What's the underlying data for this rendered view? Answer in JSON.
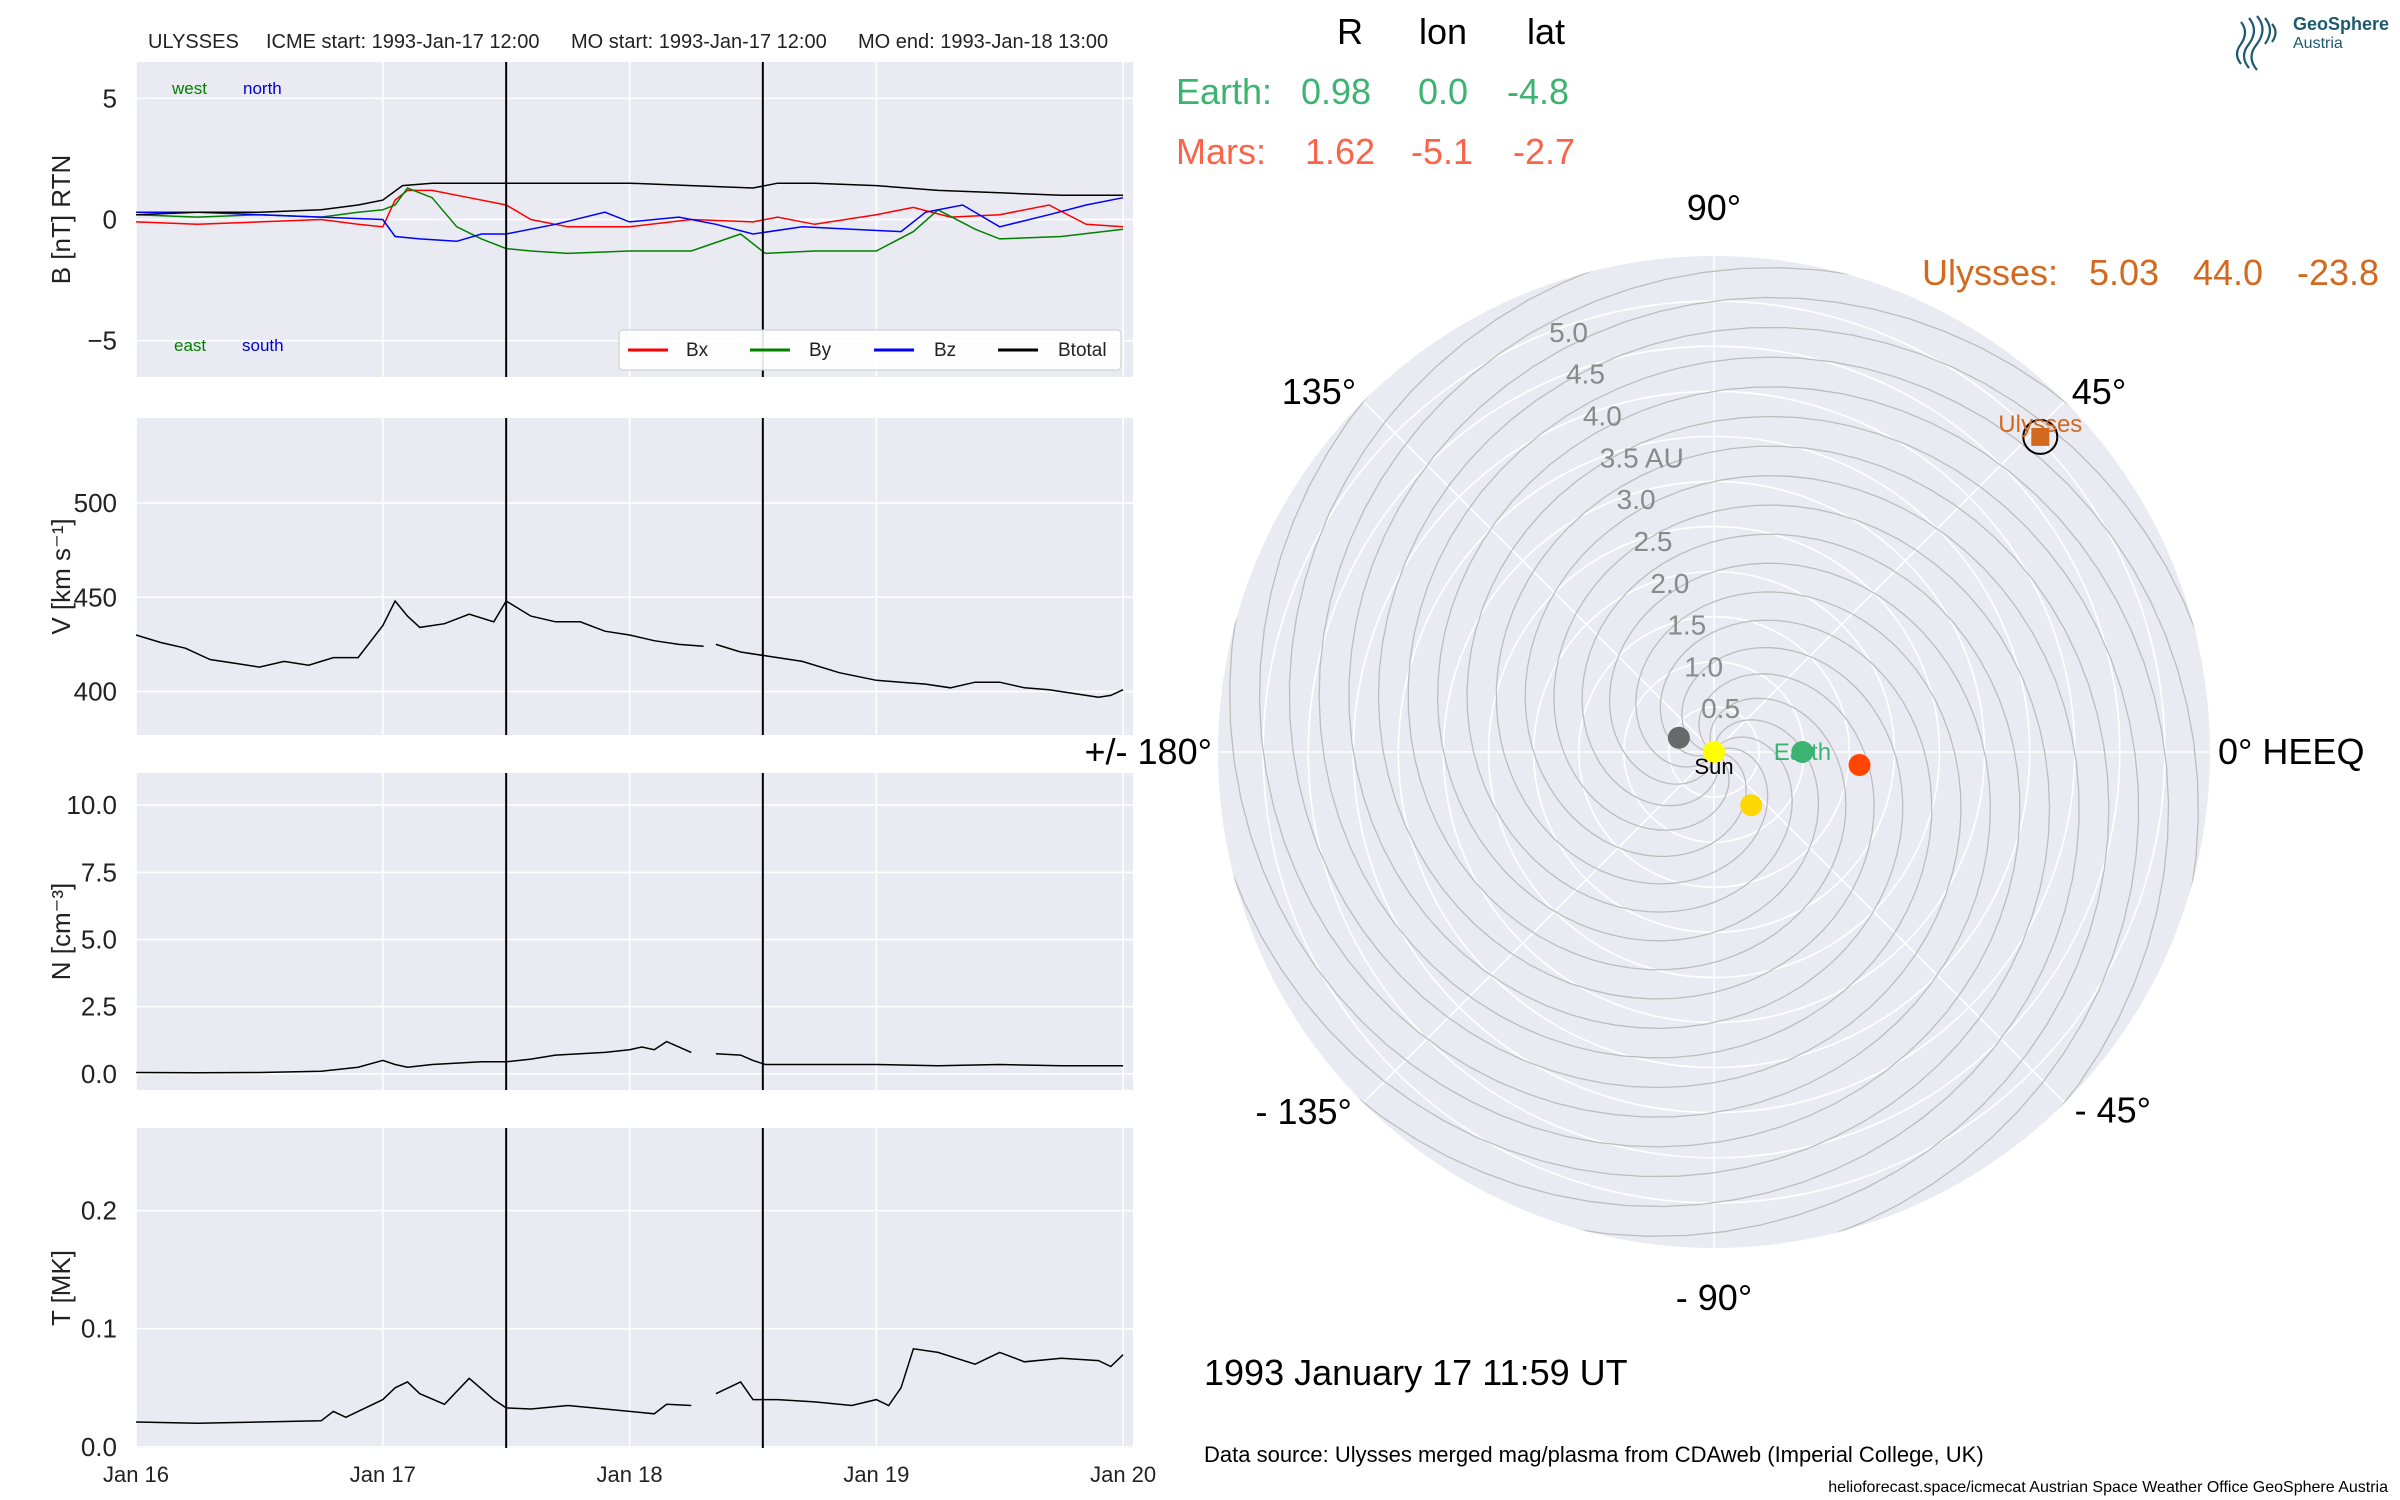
{
  "header": {
    "spacecraft": "ULYSSES",
    "icme_start": "ICME start: 1993-Jan-17 12:00",
    "mo_start": "MO start: 1993-Jan-17 12:00",
    "mo_end": "MO end: 1993-Jan-18 13:00"
  },
  "time_axis": {
    "range_days": [
      0,
      4.04
    ],
    "ticks": [
      {
        "day": 0,
        "label": "Jan 16"
      },
      {
        "day": 1,
        "label": "Jan 17"
      },
      {
        "day": 2,
        "label": "Jan 18"
      },
      {
        "day": 3,
        "label": "Jan 19"
      },
      {
        "day": 4,
        "label": "Jan 20"
      }
    ],
    "event_lines_days": [
      1.5,
      2.54
    ]
  },
  "panels": [
    {
      "id": "b",
      "ylabel": "B [nT] RTN",
      "ylim": [
        -6.5,
        6.5
      ],
      "yticks": [
        {
          "v": 5,
          "label": "5"
        },
        {
          "v": 0,
          "label": "0"
        },
        {
          "v": -5,
          "label": "−5"
        }
      ],
      "annotations": {
        "west": "west",
        "north": "north",
        "east": "east",
        "south": "south"
      },
      "legend": [
        {
          "name": "Bx",
          "color": "#ff0000"
        },
        {
          "name": "By",
          "color": "#008000"
        },
        {
          "name": "Bz",
          "color": "#0000ff"
        },
        {
          "name": "Btotal",
          "color": "#000000"
        }
      ]
    },
    {
      "id": "v",
      "ylabel": "V [km s⁻¹]",
      "ylim": [
        377,
        545
      ],
      "yticks": [
        {
          "v": 500,
          "label": "500"
        },
        {
          "v": 450,
          "label": "450"
        },
        {
          "v": 400,
          "label": "400"
        }
      ]
    },
    {
      "id": "n",
      "ylabel": "N [cm⁻³]",
      "ylim": [
        -0.6,
        11.2
      ],
      "yticks": [
        {
          "v": 10,
          "label": "10.0"
        },
        {
          "v": 7.5,
          "label": "7.5"
        },
        {
          "v": 5,
          "label": "5.0"
        },
        {
          "v": 2.5,
          "label": "2.5"
        },
        {
          "v": 0,
          "label": "0.0"
        }
      ]
    },
    {
      "id": "t",
      "ylabel": "T [MK]",
      "ylim": [
        -0.001,
        0.27
      ],
      "yticks": [
        {
          "v": 0.2,
          "label": "0.2"
        },
        {
          "v": 0.1,
          "label": "0.1"
        },
        {
          "v": 0,
          "label": "0.0"
        }
      ]
    }
  ],
  "chart_data": [
    {
      "type": "line",
      "title": "ULYSSES",
      "ylabel": "B [nT] RTN",
      "x_units": "days since 1993-Jan-16 00:00",
      "ylim": [
        -6.5,
        6.5
      ],
      "series": [
        {
          "name": "Bx",
          "color": "#ff0000",
          "x": [
            0,
            0.25,
            0.5,
            0.75,
            0.9,
            1.0,
            1.05,
            1.1,
            1.2,
            1.35,
            1.5,
            1.6,
            1.75,
            2.0,
            2.25,
            2.5,
            2.6,
            2.75,
            3.0,
            3.15,
            3.3,
            3.5,
            3.7,
            3.85,
            4.0
          ],
          "y": [
            -0.1,
            -0.2,
            -0.1,
            0.0,
            -0.2,
            -0.3,
            0.8,
            1.2,
            1.2,
            0.9,
            0.6,
            0.0,
            -0.3,
            -0.3,
            0.0,
            -0.1,
            0.1,
            -0.2,
            0.2,
            0.5,
            0.1,
            0.2,
            0.6,
            -0.2,
            -0.3
          ]
        },
        {
          "name": "By",
          "color": "#008000",
          "x": [
            0,
            0.25,
            0.5,
            0.75,
            0.9,
            1.0,
            1.05,
            1.1,
            1.2,
            1.3,
            1.4,
            1.5,
            1.6,
            1.75,
            2.0,
            2.25,
            2.45,
            2.55,
            2.75,
            3.0,
            3.15,
            3.25,
            3.4,
            3.5,
            3.75,
            4.0
          ],
          "y": [
            0.2,
            0.1,
            0.2,
            0.1,
            0.3,
            0.4,
            0.6,
            1.3,
            0.9,
            -0.3,
            -0.8,
            -1.2,
            -1.3,
            -1.4,
            -1.3,
            -1.3,
            -0.6,
            -1.4,
            -1.3,
            -1.3,
            -0.5,
            0.4,
            -0.4,
            -0.8,
            -0.7,
            -0.4
          ]
        },
        {
          "name": "Bz",
          "color": "#0000ff",
          "x": [
            0,
            0.25,
            0.5,
            0.75,
            1.0,
            1.05,
            1.15,
            1.3,
            1.4,
            1.5,
            1.7,
            1.9,
            2.0,
            2.2,
            2.35,
            2.5,
            2.7,
            2.9,
            3.1,
            3.2,
            3.35,
            3.5,
            3.7,
            3.85,
            4.0
          ],
          "y": [
            0.3,
            0.3,
            0.2,
            0.1,
            0.0,
            -0.7,
            -0.8,
            -0.9,
            -0.6,
            -0.6,
            -0.2,
            0.3,
            -0.1,
            0.1,
            -0.2,
            -0.6,
            -0.3,
            -0.4,
            -0.5,
            0.3,
            0.6,
            -0.3,
            0.2,
            0.6,
            0.9
          ]
        },
        {
          "name": "Btotal",
          "color": "#000000",
          "x": [
            0,
            0.25,
            0.5,
            0.75,
            0.9,
            1.0,
            1.08,
            1.2,
            1.5,
            1.75,
            2.0,
            2.25,
            2.5,
            2.6,
            2.75,
            3.0,
            3.25,
            3.5,
            3.75,
            4.0
          ],
          "y": [
            0.2,
            0.3,
            0.3,
            0.4,
            0.6,
            0.8,
            1.4,
            1.5,
            1.5,
            1.5,
            1.5,
            1.4,
            1.3,
            1.5,
            1.5,
            1.4,
            1.2,
            1.1,
            1.0,
            1.0
          ]
        }
      ]
    },
    {
      "type": "line",
      "ylabel": "V [km s⁻¹]",
      "x_units": "days since 1993-Jan-16 00:00",
      "ylim": [
        377,
        545
      ],
      "series": [
        {
          "name": "V",
          "color": "#000000",
          "x": [
            0,
            0.1,
            0.2,
            0.3,
            0.4,
            0.5,
            0.6,
            0.7,
            0.75,
            0.8,
            0.9,
            1.0,
            1.05,
            1.1,
            1.15,
            1.25,
            1.35,
            1.45,
            1.5,
            1.6,
            1.7,
            1.8,
            1.9,
            2.0,
            2.1,
            2.2,
            2.3,
            null,
            2.35,
            2.45,
            2.55,
            2.7,
            2.85,
            3.0,
            3.1,
            3.2,
            3.3,
            3.4,
            3.5,
            3.6,
            3.7,
            3.8,
            3.9,
            3.95,
            4.0
          ],
          "y": [
            430,
            426,
            423,
            417,
            415,
            413,
            416,
            414,
            416,
            418,
            418,
            435,
            448,
            440,
            434,
            436,
            441,
            437,
            448,
            440,
            437,
            437,
            432,
            430,
            427,
            425,
            424,
            null,
            425,
            421,
            419,
            416,
            410,
            406,
            405,
            404,
            402,
            405,
            405,
            402,
            401,
            399,
            397,
            398,
            401
          ]
        }
      ]
    },
    {
      "type": "line",
      "ylabel": "N [cm⁻³]",
      "x_units": "days since 1993-Jan-16 00:00",
      "ylim": [
        -0.6,
        11.2
      ],
      "series": [
        {
          "name": "N",
          "color": "#000000",
          "x": [
            0,
            0.25,
            0.5,
            0.75,
            0.9,
            1.0,
            1.05,
            1.1,
            1.2,
            1.3,
            1.4,
            1.5,
            1.6,
            1.7,
            1.8,
            1.9,
            2.0,
            2.05,
            2.1,
            2.15,
            2.25,
            null,
            2.35,
            2.45,
            2.5,
            2.55,
            2.75,
            3.0,
            3.25,
            3.5,
            3.75,
            4.0
          ],
          "y": [
            0.05,
            0.04,
            0.05,
            0.1,
            0.25,
            0.5,
            0.35,
            0.25,
            0.35,
            0.4,
            0.45,
            0.45,
            0.55,
            0.7,
            0.75,
            0.8,
            0.9,
            1.0,
            0.9,
            1.2,
            0.8,
            null,
            0.75,
            0.7,
            0.5,
            0.35,
            0.35,
            0.35,
            0.3,
            0.35,
            0.3,
            0.3
          ]
        }
      ]
    },
    {
      "type": "line",
      "ylabel": "T [MK]",
      "x_units": "days since 1993-Jan-16 00:00",
      "ylim": [
        -0.001,
        0.27
      ],
      "series": [
        {
          "name": "T",
          "color": "#000000",
          "x": [
            0,
            0.25,
            0.5,
            0.75,
            0.8,
            0.85,
            0.9,
            1.0,
            1.05,
            1.1,
            1.15,
            1.25,
            1.35,
            1.45,
            1.5,
            1.6,
            1.75,
            1.9,
            2.0,
            2.1,
            2.15,
            2.25,
            null,
            2.35,
            2.45,
            2.5,
            2.6,
            2.75,
            2.9,
            3.0,
            3.05,
            3.1,
            3.15,
            3.25,
            3.4,
            3.5,
            3.6,
            3.75,
            3.9,
            3.95,
            4.0
          ],
          "y": [
            0.021,
            0.02,
            0.021,
            0.022,
            0.03,
            0.025,
            0.03,
            0.04,
            0.05,
            0.055,
            0.045,
            0.036,
            0.058,
            0.04,
            0.033,
            0.032,
            0.035,
            0.032,
            0.03,
            0.028,
            0.036,
            0.035,
            null,
            0.045,
            0.055,
            0.04,
            0.04,
            0.038,
            0.035,
            0.04,
            0.035,
            0.05,
            0.083,
            0.08,
            0.07,
            0.08,
            0.072,
            0.075,
            0.073,
            0.068,
            0.078
          ]
        }
      ]
    },
    {
      "type": "scatter",
      "subtype": "polar",
      "title": "1993 January 17  11:59 UT",
      "r_range": [
        0,
        5.5
      ],
      "r_ticks": [
        0.5,
        1.0,
        1.5,
        2.0,
        2.5,
        3.0,
        3.5,
        4.0,
        4.5,
        5.0
      ],
      "r_tick_labels": [
        "0.5",
        "1.0",
        "1.5",
        "2.0",
        "2.5",
        "3.0",
        "3.5 AU",
        "4.0",
        "4.5",
        "5.0"
      ],
      "angle_labels": [
        {
          "deg": 0,
          "label": "0° HEEQ"
        },
        {
          "deg": 45,
          "label": "45°"
        },
        {
          "deg": 90,
          "label": "90°"
        },
        {
          "deg": 135,
          "label": "135°"
        },
        {
          "deg": 180,
          "label": "+/- 180°"
        },
        {
          "deg": -135,
          "label": "- 135°"
        },
        {
          "deg": -90,
          "label": "- 90°"
        },
        {
          "deg": -45,
          "label": "- 45°"
        }
      ],
      "bodies": [
        {
          "name": "Sun",
          "label": "Sun",
          "r": 0.0,
          "lon": 0.0,
          "color": "#ffff00"
        },
        {
          "name": "Earth",
          "label": "Earth",
          "r": 0.98,
          "lon": 0.0,
          "color": "#3cb371"
        },
        {
          "name": "Mars",
          "r": 1.62,
          "lon": -5.1,
          "color": "#ff4500"
        },
        {
          "name": "Venus",
          "r": 0.72,
          "lon": -55.0,
          "color": "#ffd700"
        },
        {
          "name": "Mercury",
          "r": 0.42,
          "lon": 158.0,
          "color": "#696969"
        },
        {
          "name": "Ulysses",
          "label": "Ulysses",
          "r": 5.03,
          "lon": 44.0,
          "color": "#d2691e",
          "marker": "square"
        }
      ],
      "table": {
        "headers": [
          "R",
          "lon",
          "lat"
        ],
        "rows": [
          {
            "name": "Earth:",
            "R": "0.98",
            "lon": "0.0",
            "lat": "-4.8",
            "color": "#3cb371"
          },
          {
            "name": "Mars:",
            "R": "1.62",
            "lon": "-5.1",
            "lat": "-2.7",
            "color": "#fa6449"
          },
          {
            "name": "Ulysses:",
            "R": "5.03",
            "lon": "44.0",
            "lat": "-23.8",
            "color": "#d2691e"
          }
        ]
      }
    }
  ],
  "footer": {
    "timestamp": "1993 January 17  11:59 UT",
    "data_source": "Data source: Ulysses merged mag/plasma from CDAweb (Imperial College, UK)",
    "credit": "helioforecast.space/icmecat   Austrian Space Weather Office   GeoSphere Austria"
  },
  "logo": {
    "name": "GeoSphere",
    "sub": "Austria",
    "color": "#1d5a70"
  }
}
